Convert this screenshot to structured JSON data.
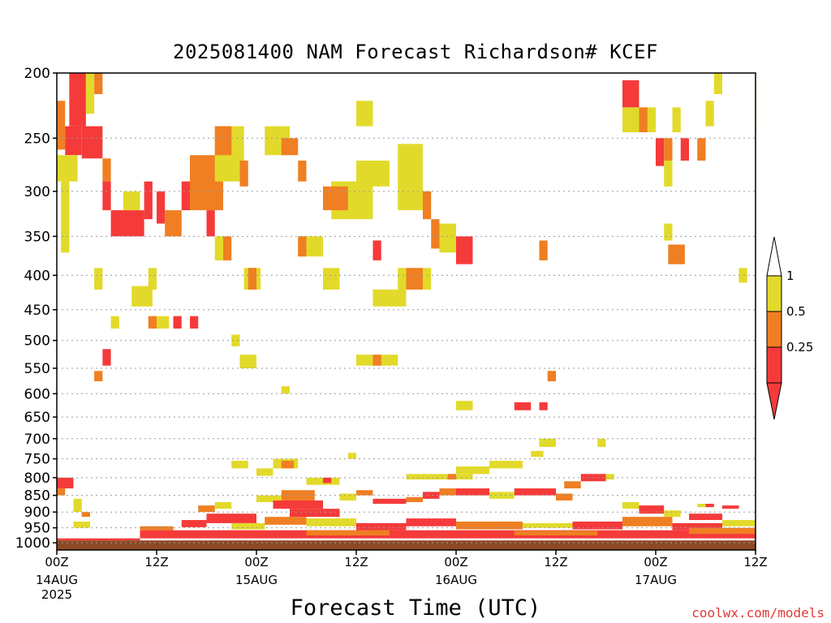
{
  "title": "2025081400 NAM Forecast Richardson# KCEF",
  "xlabel": "Forecast Time (UTC)",
  "credit": "coolwx.com/models",
  "colors": {
    "yellow": "#e2da2a",
    "orange": "#ef7f22",
    "red": "#f53a3a",
    "ground": "#8b4a24",
    "grid": "#9a9a9a"
  },
  "chart_data": {
    "type": "heatmap",
    "title": "2025081400 NAM Forecast Richardson# KCEF",
    "xlabel": "Forecast Time (UTC)",
    "ylabel": "",
    "x_range_hours": [
      0,
      84
    ],
    "y_scale": "log-pressure",
    "ylim_hpa": [
      1025,
      200
    ],
    "y_ticks": [
      {
        "value": 200,
        "label": "200"
      },
      {
        "value": 250,
        "label": "250"
      },
      {
        "value": 300,
        "label": "300"
      },
      {
        "value": 350,
        "label": "350"
      },
      {
        "value": 400,
        "label": "400"
      },
      {
        "value": 450,
        "label": "450"
      },
      {
        "value": 500,
        "label": "500"
      },
      {
        "value": 550,
        "label": "550"
      },
      {
        "value": 600,
        "label": "600"
      },
      {
        "value": 650,
        "label": "650"
      },
      {
        "value": 700,
        "label": "700"
      },
      {
        "value": 750,
        "label": "750"
      },
      {
        "value": 800,
        "label": "800"
      },
      {
        "value": 850,
        "label": "850"
      },
      {
        "value": 900,
        "label": "900"
      },
      {
        "value": 950,
        "label": "950"
      },
      {
        "value": 1000,
        "label": "1000"
      }
    ],
    "x_ticks": [
      {
        "hour": 0,
        "label": "00Z",
        "sub1": "14AUG",
        "sub2": "2025"
      },
      {
        "hour": 12,
        "label": "12Z",
        "sub1": "",
        "sub2": ""
      },
      {
        "hour": 24,
        "label": "00Z",
        "sub1": "15AUG",
        "sub2": ""
      },
      {
        "hour": 36,
        "label": "12Z",
        "sub1": "",
        "sub2": ""
      },
      {
        "hour": 48,
        "label": "00Z",
        "sub1": "16AUG",
        "sub2": ""
      },
      {
        "hour": 60,
        "label": "12Z",
        "sub1": "",
        "sub2": ""
      },
      {
        "hour": 72,
        "label": "00Z",
        "sub1": "17AUG",
        "sub2": ""
      },
      {
        "hour": 84,
        "label": "12Z",
        "sub1": "",
        "sub2": ""
      }
    ],
    "legend": {
      "placement": "right",
      "labels": [
        "1",
        "0.5",
        "0.25"
      ],
      "bins": [
        {
          "range": "0.5-1",
          "color": "yellow"
        },
        {
          "range": "0.25-0.5",
          "color": "orange"
        },
        {
          "range": "<0.25",
          "color": "red"
        }
      ]
    },
    "cells": [
      {
        "t0": 1.5,
        "t1": 3.5,
        "p0": 200,
        "p1": 240,
        "c": "red"
      },
      {
        "t0": 3.5,
        "t1": 4.5,
        "p0": 200,
        "p1": 230,
        "c": "yellow"
      },
      {
        "t0": 4.5,
        "t1": 5.5,
        "p0": 200,
        "p1": 215,
        "c": "orange"
      },
      {
        "t0": 0,
        "t1": 1,
        "p0": 220,
        "p1": 260,
        "c": "orange"
      },
      {
        "t0": 1,
        "t1": 3,
        "p0": 240,
        "p1": 265,
        "c": "red"
      },
      {
        "t0": 3,
        "t1": 5.5,
        "p0": 240,
        "p1": 268,
        "c": "red"
      },
      {
        "t0": 0,
        "t1": 2.5,
        "p0": 265,
        "p1": 290,
        "c": "yellow"
      },
      {
        "t0": 5.5,
        "t1": 6.5,
        "p0": 268,
        "p1": 290,
        "c": "orange"
      },
      {
        "t0": 0.5,
        "t1": 1.5,
        "p0": 290,
        "p1": 370,
        "c": "yellow"
      },
      {
        "t0": 5.5,
        "t1": 6.5,
        "p0": 290,
        "p1": 320,
        "c": "red"
      },
      {
        "t0": 6.5,
        "t1": 10.5,
        "p0": 320,
        "p1": 350,
        "c": "red"
      },
      {
        "t0": 8,
        "t1": 10,
        "p0": 300,
        "p1": 320,
        "c": "yellow"
      },
      {
        "t0": 10.5,
        "t1": 11.5,
        "p0": 290,
        "p1": 330,
        "c": "red"
      },
      {
        "t0": 12,
        "t1": 13,
        "p0": 300,
        "p1": 335,
        "c": "red"
      },
      {
        "t0": 13,
        "t1": 15,
        "p0": 320,
        "p1": 350,
        "c": "orange"
      },
      {
        "t0": 15,
        "t1": 16,
        "p0": 290,
        "p1": 320,
        "c": "red"
      },
      {
        "t0": 16,
        "t1": 20,
        "p0": 265,
        "p1": 320,
        "c": "orange"
      },
      {
        "t0": 18,
        "t1": 19,
        "p0": 320,
        "p1": 350,
        "c": "red"
      },
      {
        "t0": 19,
        "t1": 22.5,
        "p0": 240,
        "p1": 290,
        "c": "yellow"
      },
      {
        "t0": 19,
        "t1": 21,
        "p0": 240,
        "p1": 265,
        "c": "orange"
      },
      {
        "t0": 22,
        "t1": 23,
        "p0": 270,
        "p1": 295,
        "c": "orange"
      },
      {
        "t0": 19,
        "t1": 20,
        "p0": 350,
        "p1": 380,
        "c": "yellow"
      },
      {
        "t0": 20,
        "t1": 21,
        "p0": 350,
        "p1": 380,
        "c": "orange"
      },
      {
        "t0": 25,
        "t1": 28,
        "p0": 240,
        "p1": 265,
        "c": "yellow"
      },
      {
        "t0": 27,
        "t1": 29,
        "p0": 250,
        "p1": 265,
        "c": "orange"
      },
      {
        "t0": 29,
        "t1": 30,
        "p0": 270,
        "p1": 290,
        "c": "orange"
      },
      {
        "t0": 29,
        "t1": 32,
        "p0": 350,
        "p1": 375,
        "c": "yellow"
      },
      {
        "t0": 29,
        "t1": 30,
        "p0": 350,
        "p1": 375,
        "c": "orange"
      },
      {
        "t0": 33,
        "t1": 38,
        "p0": 290,
        "p1": 330,
        "c": "yellow"
      },
      {
        "t0": 32,
        "t1": 35,
        "p0": 295,
        "p1": 320,
        "c": "orange"
      },
      {
        "t0": 36,
        "t1": 40,
        "p0": 270,
        "p1": 295,
        "c": "yellow"
      },
      {
        "t0": 41,
        "t1": 44,
        "p0": 255,
        "p1": 320,
        "c": "yellow"
      },
      {
        "t0": 44,
        "t1": 45,
        "p0": 300,
        "p1": 330,
        "c": "orange"
      },
      {
        "t0": 36,
        "t1": 38,
        "p0": 220,
        "p1": 240,
        "c": "yellow"
      },
      {
        "t0": 45,
        "t1": 46,
        "p0": 330,
        "p1": 365,
        "c": "orange"
      },
      {
        "t0": 46,
        "t1": 48,
        "p0": 335,
        "p1": 370,
        "c": "yellow"
      },
      {
        "t0": 48,
        "t1": 50,
        "p0": 350,
        "p1": 385,
        "c": "red"
      },
      {
        "t0": 38,
        "t1": 39,
        "p0": 355,
        "p1": 380,
        "c": "red"
      },
      {
        "t0": 42,
        "t1": 44,
        "p0": 390,
        "p1": 420,
        "c": "orange"
      },
      {
        "t0": 41,
        "t1": 42,
        "p0": 390,
        "p1": 420,
        "c": "yellow"
      },
      {
        "t0": 44,
        "t1": 45,
        "p0": 390,
        "p1": 420,
        "c": "yellow"
      },
      {
        "t0": 32,
        "t1": 34,
        "p0": 390,
        "p1": 420,
        "c": "yellow"
      },
      {
        "t0": 22.5,
        "t1": 24.5,
        "p0": 390,
        "p1": 420,
        "c": "yellow"
      },
      {
        "t0": 23,
        "t1": 24,
        "p0": 390,
        "p1": 420,
        "c": "orange"
      },
      {
        "t0": 38,
        "t1": 42,
        "p0": 420,
        "p1": 445,
        "c": "yellow"
      },
      {
        "t0": 9,
        "t1": 11.5,
        "p0": 415,
        "p1": 445,
        "c": "yellow"
      },
      {
        "t0": 11,
        "t1": 12,
        "p0": 390,
        "p1": 420,
        "c": "yellow"
      },
      {
        "t0": 4.5,
        "t1": 5.5,
        "p0": 390,
        "p1": 420,
        "c": "yellow"
      },
      {
        "t0": 11,
        "t1": 12,
        "p0": 460,
        "p1": 480,
        "c": "orange"
      },
      {
        "t0": 12,
        "t1": 13.5,
        "p0": 460,
        "p1": 480,
        "c": "yellow"
      },
      {
        "t0": 14,
        "t1": 15,
        "p0": 460,
        "p1": 480,
        "c": "red"
      },
      {
        "t0": 16,
        "t1": 17,
        "p0": 460,
        "p1": 480,
        "c": "red"
      },
      {
        "t0": 6.5,
        "t1": 7.5,
        "p0": 460,
        "p1": 480,
        "c": "yellow"
      },
      {
        "t0": 5.5,
        "t1": 6.5,
        "p0": 515,
        "p1": 545,
        "c": "red"
      },
      {
        "t0": 4.5,
        "t1": 5.5,
        "p0": 555,
        "p1": 575,
        "c": "orange"
      },
      {
        "t0": 21,
        "t1": 22,
        "p0": 490,
        "p1": 510,
        "c": "yellow"
      },
      {
        "t0": 22,
        "t1": 24,
        "p0": 525,
        "p1": 550,
        "c": "yellow"
      },
      {
        "t0": 36,
        "t1": 41,
        "p0": 525,
        "p1": 545,
        "c": "yellow"
      },
      {
        "t0": 38,
        "t1": 39,
        "p0": 525,
        "p1": 545,
        "c": "orange"
      },
      {
        "t0": 27,
        "t1": 28,
        "p0": 585,
        "p1": 600,
        "c": "yellow"
      },
      {
        "t0": 48,
        "t1": 50,
        "p0": 615,
        "p1": 635,
        "c": "yellow"
      },
      {
        "t0": 55,
        "t1": 57,
        "p0": 618,
        "p1": 635,
        "c": "red"
      },
      {
        "t0": 58,
        "t1": 59,
        "p0": 618,
        "p1": 635,
        "c": "red"
      },
      {
        "t0": 59,
        "t1": 60,
        "p0": 555,
        "p1": 575,
        "c": "orange"
      },
      {
        "t0": 58,
        "t1": 60,
        "p0": 700,
        "p1": 720,
        "c": "yellow"
      },
      {
        "t0": 65,
        "t1": 66,
        "p0": 700,
        "p1": 720,
        "c": "yellow"
      },
      {
        "t0": 58,
        "t1": 59,
        "p0": 355,
        "p1": 380,
        "c": "orange"
      },
      {
        "t0": 68,
        "t1": 70,
        "p0": 205,
        "p1": 225,
        "c": "red"
      },
      {
        "t0": 68,
        "t1": 72,
        "p0": 225,
        "p1": 245,
        "c": "yellow"
      },
      {
        "t0": 70,
        "t1": 71,
        "p0": 225,
        "p1": 245,
        "c": "orange"
      },
      {
        "t0": 72,
        "t1": 73,
        "p0": 250,
        "p1": 275,
        "c": "red"
      },
      {
        "t0": 73,
        "t1": 74,
        "p0": 250,
        "p1": 270,
        "c": "orange"
      },
      {
        "t0": 75,
        "t1": 76,
        "p0": 250,
        "p1": 270,
        "c": "red"
      },
      {
        "t0": 77,
        "t1": 78,
        "p0": 250,
        "p1": 270,
        "c": "orange"
      },
      {
        "t0": 79,
        "t1": 80,
        "p0": 200,
        "p1": 215,
        "c": "yellow"
      },
      {
        "t0": 78,
        "t1": 79,
        "p0": 220,
        "p1": 240,
        "c": "yellow"
      },
      {
        "t0": 74,
        "t1": 75,
        "p0": 225,
        "p1": 245,
        "c": "yellow"
      },
      {
        "t0": 73,
        "t1": 74,
        "p0": 270,
        "p1": 295,
        "c": "yellow"
      },
      {
        "t0": 73.5,
        "t1": 75.5,
        "p0": 360,
        "p1": 385,
        "c": "orange"
      },
      {
        "t0": 73,
        "t1": 74,
        "p0": 335,
        "p1": 355,
        "c": "yellow"
      },
      {
        "t0": 82,
        "t1": 83,
        "p0": 390,
        "p1": 410,
        "c": "yellow"
      },
      {
        "t0": 84,
        "t1": 85,
        "p0": 205,
        "p1": 245,
        "c": "yellow"
      },
      {
        "t0": 0,
        "t1": 2,
        "p0": 800,
        "p1": 830,
        "c": "red"
      },
      {
        "t0": 0,
        "t1": 1,
        "p0": 830,
        "p1": 850,
        "c": "orange"
      },
      {
        "t0": 2,
        "t1": 3,
        "p0": 860,
        "p1": 900,
        "c": "yellow"
      },
      {
        "t0": 3,
        "t1": 4,
        "p0": 900,
        "p1": 915,
        "c": "orange"
      },
      {
        "t0": 2,
        "t1": 4,
        "p0": 930,
        "p1": 950,
        "c": "yellow"
      },
      {
        "t0": 26,
        "t1": 29,
        "p0": 750,
        "p1": 775,
        "c": "yellow"
      },
      {
        "t0": 27,
        "t1": 28.5,
        "p0": 755,
        "p1": 775,
        "c": "orange"
      },
      {
        "t0": 21,
        "t1": 23,
        "p0": 755,
        "p1": 775,
        "c": "yellow"
      },
      {
        "t0": 24,
        "t1": 26,
        "p0": 775,
        "p1": 795,
        "c": "yellow"
      },
      {
        "t0": 35,
        "t1": 36,
        "p0": 735,
        "p1": 750,
        "c": "yellow"
      },
      {
        "t0": 48,
        "t1": 52,
        "p0": 770,
        "p1": 790,
        "c": "yellow"
      },
      {
        "t0": 52,
        "t1": 56,
        "p0": 755,
        "p1": 775,
        "c": "yellow"
      },
      {
        "t0": 42,
        "t1": 50,
        "p0": 790,
        "p1": 805,
        "c": "yellow"
      },
      {
        "t0": 47,
        "t1": 48,
        "p0": 790,
        "p1": 805,
        "c": "orange"
      },
      {
        "t0": 57,
        "t1": 58.5,
        "p0": 730,
        "p1": 745,
        "c": "yellow"
      },
      {
        "t0": 63,
        "t1": 66,
        "p0": 790,
        "p1": 810,
        "c": "red"
      },
      {
        "t0": 66,
        "t1": 67,
        "p0": 790,
        "p1": 805,
        "c": "yellow"
      },
      {
        "t0": 61,
        "t1": 63,
        "p0": 810,
        "p1": 830,
        "c": "orange"
      },
      {
        "t0": 30,
        "t1": 34,
        "p0": 800,
        "p1": 820,
        "c": "yellow"
      },
      {
        "t0": 32,
        "t1": 33,
        "p0": 800,
        "p1": 815,
        "c": "red"
      },
      {
        "t0": 17,
        "t1": 19,
        "p0": 880,
        "p1": 900,
        "c": "orange"
      },
      {
        "t0": 19,
        "t1": 21,
        "p0": 870,
        "p1": 890,
        "c": "yellow"
      },
      {
        "t0": 24,
        "t1": 27,
        "p0": 850,
        "p1": 870,
        "c": "yellow"
      },
      {
        "t0": 27,
        "t1": 31,
        "p0": 835,
        "p1": 865,
        "c": "orange"
      },
      {
        "t0": 26,
        "t1": 32,
        "p0": 865,
        "p1": 890,
        "c": "red"
      },
      {
        "t0": 28,
        "t1": 34,
        "p0": 890,
        "p1": 915,
        "c": "red"
      },
      {
        "t0": 34,
        "t1": 36,
        "p0": 845,
        "p1": 865,
        "c": "yellow"
      },
      {
        "t0": 36,
        "t1": 38,
        "p0": 835,
        "p1": 850,
        "c": "orange"
      },
      {
        "t0": 38,
        "t1": 42,
        "p0": 860,
        "p1": 875,
        "c": "red"
      },
      {
        "t0": 42,
        "t1": 44,
        "p0": 855,
        "p1": 870,
        "c": "orange"
      },
      {
        "t0": 44,
        "t1": 46,
        "p0": 840,
        "p1": 860,
        "c": "red"
      },
      {
        "t0": 46,
        "t1": 48,
        "p0": 830,
        "p1": 850,
        "c": "orange"
      },
      {
        "t0": 48,
        "t1": 52,
        "p0": 830,
        "p1": 850,
        "c": "red"
      },
      {
        "t0": 52,
        "t1": 55,
        "p0": 840,
        "p1": 860,
        "c": "yellow"
      },
      {
        "t0": 55,
        "t1": 60,
        "p0": 830,
        "p1": 850,
        "c": "red"
      },
      {
        "t0": 60,
        "t1": 62,
        "p0": 845,
        "p1": 865,
        "c": "orange"
      },
      {
        "t0": 68,
        "t1": 70,
        "p0": 870,
        "p1": 890,
        "c": "yellow"
      },
      {
        "t0": 70,
        "t1": 73,
        "p0": 880,
        "p1": 905,
        "c": "red"
      },
      {
        "t0": 73,
        "t1": 75,
        "p0": 895,
        "p1": 915,
        "c": "yellow"
      },
      {
        "t0": 77,
        "t1": 79,
        "p0": 875,
        "p1": 885,
        "c": "yellow"
      },
      {
        "t0": 78,
        "t1": 79,
        "p0": 875,
        "p1": 885,
        "c": "red"
      },
      {
        "t0": 80,
        "t1": 82,
        "p0": 880,
        "p1": 890,
        "c": "red"
      },
      {
        "t0": 76,
        "t1": 80,
        "p0": 905,
        "p1": 925,
        "c": "red"
      },
      {
        "t0": 80,
        "t1": 84,
        "p0": 925,
        "p1": 945,
        "c": "yellow"
      },
      {
        "t0": 10,
        "t1": 14,
        "p0": 945,
        "p1": 958,
        "c": "orange"
      },
      {
        "t0": 15,
        "t1": 18,
        "p0": 925,
        "p1": 948,
        "c": "red"
      },
      {
        "t0": 18,
        "t1": 24,
        "p0": 905,
        "p1": 935,
        "c": "red"
      },
      {
        "t0": 21,
        "t1": 25,
        "p0": 935,
        "p1": 955,
        "c": "yellow"
      },
      {
        "t0": 25,
        "t1": 30,
        "p0": 915,
        "p1": 940,
        "c": "orange"
      },
      {
        "t0": 30,
        "t1": 36,
        "p0": 920,
        "p1": 945,
        "c": "yellow"
      },
      {
        "t0": 36,
        "t1": 42,
        "p0": 935,
        "p1": 958,
        "c": "red"
      },
      {
        "t0": 42,
        "t1": 48,
        "p0": 920,
        "p1": 945,
        "c": "red"
      },
      {
        "t0": 48,
        "t1": 56,
        "p0": 930,
        "p1": 955,
        "c": "orange"
      },
      {
        "t0": 56,
        "t1": 62,
        "p0": 935,
        "p1": 950,
        "c": "yellow"
      },
      {
        "t0": 62,
        "t1": 68,
        "p0": 930,
        "p1": 955,
        "c": "red"
      },
      {
        "t0": 68,
        "t1": 74,
        "p0": 915,
        "p1": 945,
        "c": "orange"
      },
      {
        "t0": 74,
        "t1": 80,
        "p0": 935,
        "p1": 958,
        "c": "red"
      },
      {
        "t0": 10,
        "t1": 84,
        "p0": 958,
        "p1": 985,
        "c": "red"
      },
      {
        "t0": 30,
        "t1": 40,
        "p0": 958,
        "p1": 975,
        "c": "orange"
      },
      {
        "t0": 55,
        "t1": 65,
        "p0": 960,
        "p1": 975,
        "c": "orange"
      },
      {
        "t0": 76,
        "t1": 84,
        "p0": 950,
        "p1": 970,
        "c": "orange"
      },
      {
        "t0": 0,
        "t1": 10,
        "p0": 985,
        "p1": 992,
        "c": "red"
      }
    ],
    "ground_hpa": 992
  }
}
